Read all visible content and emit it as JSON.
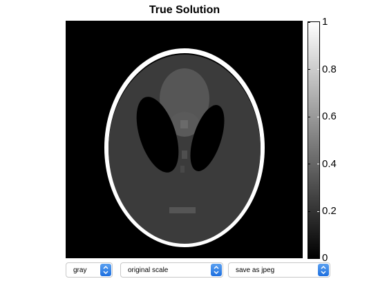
{
  "figure": {
    "title": "True Solution"
  },
  "colorbar": {
    "ticks": [
      "0",
      "0.2",
      "0.4",
      "0.6",
      "0.8",
      "1"
    ],
    "colormap": "gray",
    "range": [
      0,
      1
    ]
  },
  "controls": {
    "colormap_select": {
      "value": "gray"
    },
    "scale_select": {
      "value": "original scale"
    },
    "save_select": {
      "value": "save as jpeg"
    }
  },
  "colors": {
    "accent": "#1d6fe0",
    "background": "#000000"
  },
  "icons": {
    "dropdown": "chevron-up-down-icon"
  }
}
